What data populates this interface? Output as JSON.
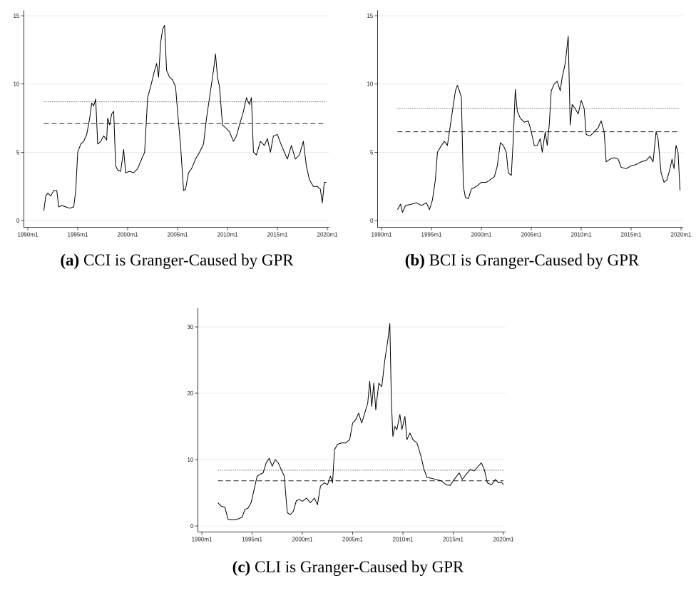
{
  "chart_data": [
    {
      "type": "line",
      "label": "(a)",
      "caption": "CCI is Granger-Caused by GPR",
      "color": "#000000",
      "grid": true,
      "xlim": [
        1989.6,
        2020.2
      ],
      "ylim": [
        -0.5,
        15.4
      ],
      "xticks": [
        {
          "value": 1990,
          "label": "1990m1"
        },
        {
          "value": 1995,
          "label": "1995m1"
        },
        {
          "value": 2000,
          "label": "2000m1"
        },
        {
          "value": 2005,
          "label": "2005m1"
        },
        {
          "value": 2010,
          "label": "2010m1"
        },
        {
          "value": 2015,
          "label": "2015m1"
        },
        {
          "value": 2020,
          "label": "2020m1"
        }
      ],
      "yticks": [
        0,
        5,
        10,
        15
      ],
      "reference_lines": [
        {
          "value": 8.7,
          "style": "dotted"
        },
        {
          "value": 7.1,
          "style": "dashed"
        }
      ],
      "x": [
        1991.6,
        1991.8,
        1992.0,
        1992.3,
        1992.6,
        1992.9,
        1993.1,
        1993.4,
        1993.8,
        1994.2,
        1994.6,
        1994.8,
        1995.0,
        1995.3,
        1995.6,
        1995.9,
        1996.2,
        1996.4,
        1996.6,
        1996.8,
        1997.0,
        1997.3,
        1997.6,
        1997.9,
        1998.0,
        1998.2,
        1998.4,
        1998.6,
        1998.8,
        1999.0,
        1999.3,
        1999.6,
        1999.8,
        2000.2,
        2000.6,
        2001.0,
        2001.4,
        2001.7,
        2002.0,
        2002.3,
        2002.7,
        2002.9,
        2003.1,
        2003.3,
        2003.5,
        2003.7,
        2003.9,
        2004.2,
        2004.5,
        2004.8,
        2005.0,
        2005.3,
        2005.6,
        2005.8,
        2006.1,
        2006.4,
        2006.8,
        2007.2,
        2007.6,
        2007.9,
        2008.3,
        2008.6,
        2008.8,
        2009.0,
        2009.2,
        2009.5,
        2009.8,
        2010.2,
        2010.6,
        2010.9,
        2011.2,
        2011.6,
        2011.9,
        2012.2,
        2012.4,
        2012.6,
        2012.9,
        2013.3,
        2013.7,
        2014.0,
        2014.3,
        2014.6,
        2015.0,
        2015.3,
        2015.7,
        2016.0,
        2016.4,
        2016.8,
        2017.2,
        2017.6,
        2017.9,
        2018.2,
        2018.6,
        2019.0,
        2019.3,
        2019.5,
        2019.7,
        2019.9
      ],
      "values": [
        0.7,
        1.8,
        2.0,
        1.8,
        2.2,
        2.2,
        1.0,
        1.1,
        1.0,
        0.9,
        1.0,
        2.2,
        5.0,
        5.6,
        5.8,
        6.3,
        7.5,
        8.6,
        8.4,
        8.9,
        5.6,
        5.8,
        6.2,
        5.9,
        7.5,
        7.0,
        7.8,
        8.0,
        4.0,
        3.7,
        3.6,
        5.2,
        3.5,
        3.6,
        3.5,
        3.8,
        4.5,
        5.0,
        9.0,
        9.8,
        11.0,
        11.5,
        10.5,
        13.0,
        14.0,
        14.3,
        11.0,
        10.5,
        10.3,
        9.8,
        8.0,
        5.5,
        2.2,
        2.3,
        3.5,
        3.8,
        4.5,
        5.0,
        5.6,
        7.5,
        9.5,
        11.0,
        12.2,
        10.5,
        9.8,
        7.0,
        6.8,
        6.5,
        5.8,
        6.2,
        7.0,
        8.0,
        9.0,
        8.5,
        9.0,
        5.0,
        4.8,
        5.8,
        5.5,
        6.0,
        5.0,
        6.2,
        6.3,
        5.7,
        5.0,
        4.5,
        5.5,
        4.5,
        4.8,
        5.8,
        4.0,
        3.0,
        2.5,
        2.5,
        2.3,
        1.3,
        2.8,
        2.8
      ]
    },
    {
      "type": "line",
      "label": "(b)",
      "caption": "BCI is Granger-Caused by GPR",
      "color": "#000000",
      "grid": true,
      "xlim": [
        1989.6,
        2020.2
      ],
      "ylim": [
        -0.5,
        15.4
      ],
      "xticks": [
        {
          "value": 1990,
          "label": "1990m1"
        },
        {
          "value": 1995,
          "label": "1995m1"
        },
        {
          "value": 2000,
          "label": "2000m1"
        },
        {
          "value": 2005,
          "label": "2005m1"
        },
        {
          "value": 2010,
          "label": "2010m1"
        },
        {
          "value": 2015,
          "label": "2015m1"
        },
        {
          "value": 2020,
          "label": "2020m1"
        }
      ],
      "yticks": [
        0,
        5,
        10,
        15
      ],
      "reference_lines": [
        {
          "value": 8.2,
          "style": "dotted"
        },
        {
          "value": 6.5,
          "style": "dashed"
        }
      ],
      "x": [
        1991.6,
        1991.9,
        1992.1,
        1992.4,
        1993.0,
        1993.5,
        1994.0,
        1994.5,
        1994.8,
        1995.1,
        1995.4,
        1995.6,
        1996.0,
        1996.3,
        1996.6,
        1996.8,
        1997.1,
        1997.4,
        1997.6,
        1997.8,
        1998.0,
        1998.2,
        1998.4,
        1998.7,
        1999.0,
        1999.5,
        2000.0,
        2000.5,
        2000.9,
        2001.3,
        2001.6,
        2001.9,
        2002.2,
        2002.5,
        2002.7,
        2003.0,
        2003.2,
        2003.4,
        2003.6,
        2003.9,
        2004.3,
        2004.7,
        2005.0,
        2005.3,
        2005.6,
        2005.9,
        2006.1,
        2006.4,
        2006.6,
        2006.8,
        2007.0,
        2007.3,
        2007.6,
        2007.9,
        2008.1,
        2008.4,
        2008.7,
        2008.9,
        2009.1,
        2009.4,
        2009.7,
        2010.0,
        2010.3,
        2010.5,
        2010.9,
        2011.3,
        2011.7,
        2012.0,
        2012.3,
        2012.5,
        2012.9,
        2013.3,
        2013.7,
        2014.0,
        2014.5,
        2015.0,
        2015.5,
        2016.0,
        2016.5,
        2016.9,
        2017.2,
        2017.5,
        2017.7,
        2018.0,
        2018.3,
        2018.6,
        2018.9,
        2019.1,
        2019.3,
        2019.5,
        2019.7,
        2019.9
      ],
      "values": [
        0.8,
        1.2,
        0.6,
        1.1,
        1.2,
        1.3,
        1.1,
        1.3,
        0.8,
        1.5,
        3.0,
        5.0,
        5.5,
        5.8,
        5.5,
        6.5,
        8.0,
        9.5,
        9.9,
        9.5,
        9.0,
        2.5,
        1.7,
        1.6,
        2.3,
        2.5,
        2.8,
        2.8,
        3.0,
        3.2,
        4.0,
        5.7,
        5.5,
        5.0,
        3.5,
        3.3,
        6.0,
        9.6,
        8.0,
        7.5,
        7.2,
        7.3,
        6.5,
        5.5,
        5.5,
        6.0,
        5.0,
        6.5,
        5.5,
        7.0,
        9.5,
        10.0,
        10.2,
        9.5,
        10.5,
        11.5,
        13.5,
        7.0,
        8.5,
        8.2,
        7.8,
        8.8,
        8.2,
        6.3,
        6.2,
        6.5,
        6.8,
        7.3,
        6.5,
        4.3,
        4.5,
        4.6,
        4.5,
        3.9,
        3.8,
        4.0,
        4.1,
        4.3,
        4.4,
        4.7,
        4.3,
        6.5,
        6.0,
        3.5,
        2.8,
        3.0,
        3.8,
        4.5,
        3.8,
        5.5,
        5.0,
        2.2
      ]
    },
    {
      "type": "line",
      "label": "(c)",
      "caption": "CLI is Granger-Caused by GPR",
      "color": "#000000",
      "grid": true,
      "xlim": [
        1989.6,
        2020.2
      ],
      "ylim": [
        -0.9,
        32.8
      ],
      "xticks": [
        {
          "value": 1990,
          "label": "1990m1"
        },
        {
          "value": 1995,
          "label": "1995m1"
        },
        {
          "value": 2000,
          "label": "2000m1"
        },
        {
          "value": 2005,
          "label": "2005m1"
        },
        {
          "value": 2010,
          "label": "2010m1"
        },
        {
          "value": 2015,
          "label": "2015m1"
        },
        {
          "value": 2020,
          "label": "2020m1"
        }
      ],
      "yticks": [
        0,
        10,
        20,
        30
      ],
      "reference_lines": [
        {
          "value": 8.4,
          "style": "dotted"
        },
        {
          "value": 6.8,
          "style": "dashed"
        }
      ],
      "x": [
        1991.6,
        1991.9,
        1992.3,
        1992.6,
        1993.0,
        1993.5,
        1994.0,
        1994.3,
        1994.6,
        1994.9,
        1995.2,
        1995.5,
        1995.8,
        1996.1,
        1996.4,
        1996.7,
        1997.0,
        1997.3,
        1997.6,
        1997.9,
        1998.2,
        1998.5,
        1998.8,
        1999.1,
        1999.4,
        1999.7,
        2000.0,
        2000.4,
        2000.8,
        2001.2,
        2001.5,
        2001.8,
        2002.2,
        2002.5,
        2002.8,
        2003.0,
        2003.2,
        2003.5,
        2003.9,
        2004.3,
        2004.7,
        2005.0,
        2005.3,
        2005.6,
        2005.9,
        2006.2,
        2006.5,
        2006.7,
        2006.9,
        2007.1,
        2007.3,
        2007.6,
        2007.9,
        2008.2,
        2008.5,
        2008.7,
        2008.85,
        2009.0,
        2009.2,
        2009.4,
        2009.7,
        2009.9,
        2010.2,
        2010.4,
        2010.7,
        2011.0,
        2011.4,
        2011.8,
        2012.1,
        2012.4,
        2012.8,
        2013.3,
        2013.8,
        2014.3,
        2014.7,
        2015.1,
        2015.6,
        2015.9,
        2016.3,
        2016.7,
        2017.1,
        2017.5,
        2017.8,
        2018.1,
        2018.4,
        2018.8,
        2019.2,
        2019.5,
        2019.8,
        2020.0
      ],
      "values": [
        3.5,
        3.0,
        2.8,
        1.0,
        0.9,
        1.0,
        1.3,
        2.5,
        2.7,
        3.5,
        5.5,
        7.5,
        7.8,
        8.0,
        9.5,
        10.2,
        9.0,
        10.0,
        9.5,
        8.5,
        7.5,
        2.0,
        1.7,
        2.2,
        3.8,
        4.0,
        3.7,
        4.2,
        3.5,
        4.2,
        3.2,
        6.0,
        6.5,
        6.2,
        7.5,
        6.5,
        11.5,
        12.3,
        12.5,
        12.5,
        13.0,
        15.5,
        16.0,
        17.0,
        15.5,
        17.0,
        18.5,
        21.8,
        18.0,
        21.5,
        17.5,
        21.5,
        21.0,
        25.0,
        28.0,
        30.5,
        19.0,
        13.5,
        15.0,
        14.5,
        16.8,
        14.5,
        16.5,
        13.0,
        14.0,
        13.0,
        12.5,
        10.5,
        8.5,
        7.3,
        7.2,
        7.0,
        6.8,
        6.2,
        6.1,
        7.0,
        8.0,
        7.0,
        7.8,
        8.5,
        8.3,
        9.0,
        9.5,
        8.5,
        6.5,
        6.2,
        7.0,
        6.5,
        6.6,
        6.2
      ]
    }
  ]
}
